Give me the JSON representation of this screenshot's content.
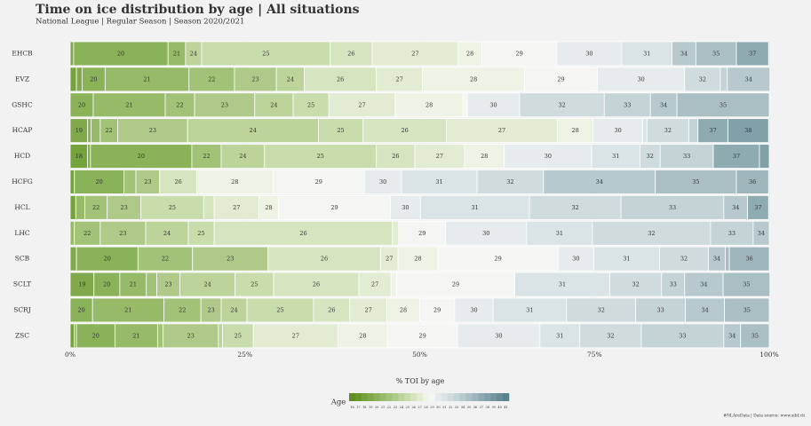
{
  "chart_data": {
    "type": "stacked-bar-horizontal",
    "title": "Time on ice distribution by age | All situations",
    "subtitle": "National League | Regular Season | Season 2020/2021",
    "x_label": "% TOI by age",
    "legend_title": "Age",
    "source": "#NLAreData | Data source: www.sihf.ch",
    "categories": [
      "EHCB",
      "EVZ",
      "GSHC",
      "HCAP",
      "HCD",
      "HCFG",
      "HCL",
      "LHC",
      "SCB",
      "SCLT",
      "SCRJ",
      "ZSC"
    ],
    "xlim": [
      0,
      100
    ],
    "xticks": [
      {
        "value": 0,
        "label": "0%"
      },
      {
        "value": 25,
        "label": "25%"
      },
      {
        "value": 50,
        "label": "50%"
      },
      {
        "value": 75,
        "label": "75%"
      },
      {
        "value": 100,
        "label": "100%"
      }
    ],
    "grid": true,
    "series": [
      {
        "name": "16",
        "color": "#5e8f22",
        "values": [
          0,
          0,
          0,
          0,
          0,
          0,
          0,
          0,
          0,
          0,
          0,
          0
        ]
      },
      {
        "name": "17",
        "color": "#699828",
        "values": [
          0,
          0,
          0,
          0,
          0,
          0,
          0,
          0,
          0,
          0,
          0,
          0
        ]
      },
      {
        "name": "18",
        "color": "#74a23c",
        "values": [
          0,
          0.9,
          0,
          0,
          2.5,
          0.6,
          0.8,
          0,
          0,
          0,
          0,
          0.6
        ]
      },
      {
        "name": "19",
        "color": "#7fa94a",
        "values": [
          0.5,
          0.8,
          0,
          2.5,
          0.4,
          0,
          0,
          0,
          0.9,
          3.4,
          0,
          0.3
        ]
      },
      {
        "name": "20",
        "color": "#8ab258",
        "values": [
          13.5,
          3.3,
          3.3,
          0.5,
          14.5,
          7.1,
          0,
          0,
          8.8,
          3.7,
          3.2,
          5.5
        ]
      },
      {
        "name": "21",
        "color": "#96ba67",
        "values": [
          2.5,
          12,
          10.3,
          1.3,
          0,
          0,
          1.3,
          0.6,
          0,
          3.8,
          10.2,
          6.1
        ]
      },
      {
        "name": "22",
        "color": "#a2c277",
        "values": [
          0,
          6.5,
          4.2,
          2.5,
          4.2,
          1.7,
          3.2,
          3.7,
          7.8,
          1.5,
          5.3,
          0.8
        ]
      },
      {
        "name": "23",
        "color": "#afca88",
        "values": [
          0,
          6,
          8.6,
          10,
          0,
          3.4,
          4.8,
          6.5,
          10.8,
          3.3,
          2.9,
          7.9
        ]
      },
      {
        "name": "24",
        "color": "#bcd39a",
        "values": [
          2.3,
          4,
          5.5,
          18.7,
          6.2,
          0,
          0,
          6.1,
          0,
          7.9,
          3.7,
          0.6
        ]
      },
      {
        "name": "25",
        "color": "#c9dcac",
        "values": [
          18.4,
          0,
          5.1,
          6.4,
          16,
          0,
          9,
          3.7,
          0,
          5.5,
          9.5,
          4.4
        ]
      },
      {
        "name": "26",
        "color": "#d6e4bf",
        "values": [
          6,
          10.3,
          0,
          11.9,
          5.5,
          5.3,
          1.5,
          25.5,
          16.1,
          12.2,
          5.2,
          0
        ]
      },
      {
        "name": "27",
        "color": "#e2ecd2",
        "values": [
          12.3,
          6.6,
          9.5,
          15.9,
          7.1,
          0,
          6.4,
          0.9,
          2.5,
          4.6,
          5.3,
          12.1
        ]
      },
      {
        "name": "28",
        "color": "#eef3e5",
        "values": [
          3.4,
          14.6,
          9.7,
          5.1,
          5.7,
          10.9,
          2.8,
          0,
          5.7,
          0.8,
          4.7,
          7.1
        ]
      },
      {
        "name": "29",
        "color": "#f5f6f3",
        "values": [
          10.7,
          10.4,
          0.6,
          0,
          0,
          13.1,
          16,
          6.7,
          17.2,
          16.9,
          5,
          10
        ]
      },
      {
        "name": "30",
        "color": "#e6eced",
        "values": [
          9.3,
          12.5,
          7.5,
          7.1,
          12.5,
          5.3,
          4.3,
          11.6,
          5.1,
          0,
          5.5,
          11.8
        ]
      },
      {
        "name": "31",
        "color": "#dae3e5",
        "values": [
          7.2,
          0,
          0,
          0.6,
          6.9,
          10.8,
          15.6,
          9.4,
          9.4,
          13.6,
          10.5,
          5.7
        ]
      },
      {
        "name": "32",
        "color": "#cfdbdd",
        "values": [
          0,
          5.1,
          12.1,
          6,
          2.9,
          9.5,
          13.1,
          16.9,
          7,
          7.4,
          9.9,
          8.8
        ]
      },
      {
        "name": "33",
        "color": "#c4d3d6",
        "values": [
          0,
          1,
          6.6,
          1.3,
          7.6,
          0,
          14.7,
          6.1,
          0,
          3.3,
          7.1,
          11.8
        ]
      },
      {
        "name": "34",
        "color": "#b7c9cd",
        "values": [
          3.4,
          6.1,
          3.8,
          0,
          0,
          16,
          3.4,
          2.3,
          2.4,
          5.5,
          5.6,
          2.4
        ]
      },
      {
        "name": "35",
        "color": "#aabfc4",
        "values": [
          5.8,
          0,
          13.2,
          0,
          0,
          11.6,
          0,
          0,
          0.6,
          6.7,
          6.4,
          4.1
        ]
      },
      {
        "name": "36",
        "color": "#9db5bb",
        "values": [
          0,
          0,
          0,
          0,
          0,
          4.6,
          0,
          0,
          5.7,
          0,
          0,
          0
        ]
      },
      {
        "name": "37",
        "color": "#8fabb2",
        "values": [
          4.6,
          0,
          0,
          4.3,
          6.6,
          0,
          3,
          0,
          0,
          0,
          0,
          0
        ]
      },
      {
        "name": "38",
        "color": "#81a0a8",
        "values": [
          0,
          0,
          0,
          5.8,
          1.4,
          0,
          0,
          0,
          0,
          0,
          0,
          0
        ]
      },
      {
        "name": "39",
        "color": "#74969f",
        "values": [
          0,
          0,
          0,
          0,
          0,
          0,
          0,
          0,
          0,
          0,
          0,
          0
        ]
      },
      {
        "name": "40",
        "color": "#678c96",
        "values": [
          0,
          0,
          0,
          0,
          0,
          0,
          0,
          0,
          0,
          0,
          0,
          0
        ]
      },
      {
        "name": "41",
        "color": "#5a828c",
        "values": [
          0,
          0,
          0,
          0,
          0,
          0,
          0,
          0,
          0,
          0,
          0,
          0
        ]
      }
    ]
  }
}
